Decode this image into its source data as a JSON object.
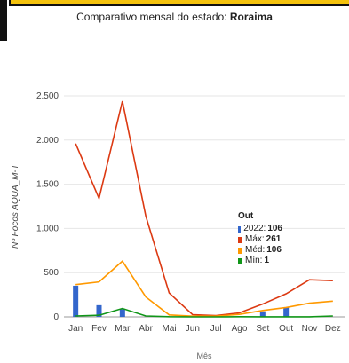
{
  "header": {
    "subtitle_prefix": "Comparativo mensal do estado:",
    "subtitle_state": "Roraima"
  },
  "chart_data": {
    "type": "line",
    "xlabel": "Mês",
    "ylabel": "Nº Focos AQUA_M-T",
    "categories": [
      "Jan",
      "Fev",
      "Mar",
      "Abr",
      "Mai",
      "Jun",
      "Jul",
      "Ago",
      "Set",
      "Out",
      "Nov",
      "Dez"
    ],
    "ylim": [
      0,
      2500
    ],
    "yticks": [
      0,
      500,
      1000,
      1500,
      2000,
      2500
    ],
    "ytick_labels": [
      "0",
      "500",
      "1.000",
      "1.500",
      "2.000",
      "2.500"
    ],
    "grid": true,
    "series": [
      {
        "name": "2022",
        "kind": "bar",
        "color": "#3366cc",
        "values": [
          352,
          132,
          88,
          null,
          null,
          null,
          null,
          null,
          62,
          106,
          null,
          null
        ]
      },
      {
        "name": "Máx",
        "kind": "line",
        "color": "#dc3912",
        "values": [
          1960,
          1340,
          2440,
          1140,
          270,
          25,
          15,
          45,
          145,
          261,
          420,
          410
        ]
      },
      {
        "name": "Méd",
        "kind": "line",
        "color": "#ff9900",
        "values": [
          365,
          395,
          630,
          225,
          22,
          8,
          8,
          28,
          72,
          106,
          155,
          178
        ]
      },
      {
        "name": "Mín",
        "kind": "line",
        "color": "#109618",
        "values": [
          10,
          18,
          95,
          10,
          2,
          0,
          0,
          2,
          1,
          1,
          1,
          10
        ]
      }
    ]
  },
  "tooltip": {
    "title": "Out",
    "rows": [
      {
        "label": "2022:",
        "value": "106",
        "color": "#3366cc"
      },
      {
        "label": "Máx:",
        "value": "261",
        "color": "#dc3912"
      },
      {
        "label": "Méd:",
        "value": "106",
        "color": "#ff9900"
      },
      {
        "label": "Mín:",
        "value": "1",
        "color": "#109618"
      }
    ]
  }
}
